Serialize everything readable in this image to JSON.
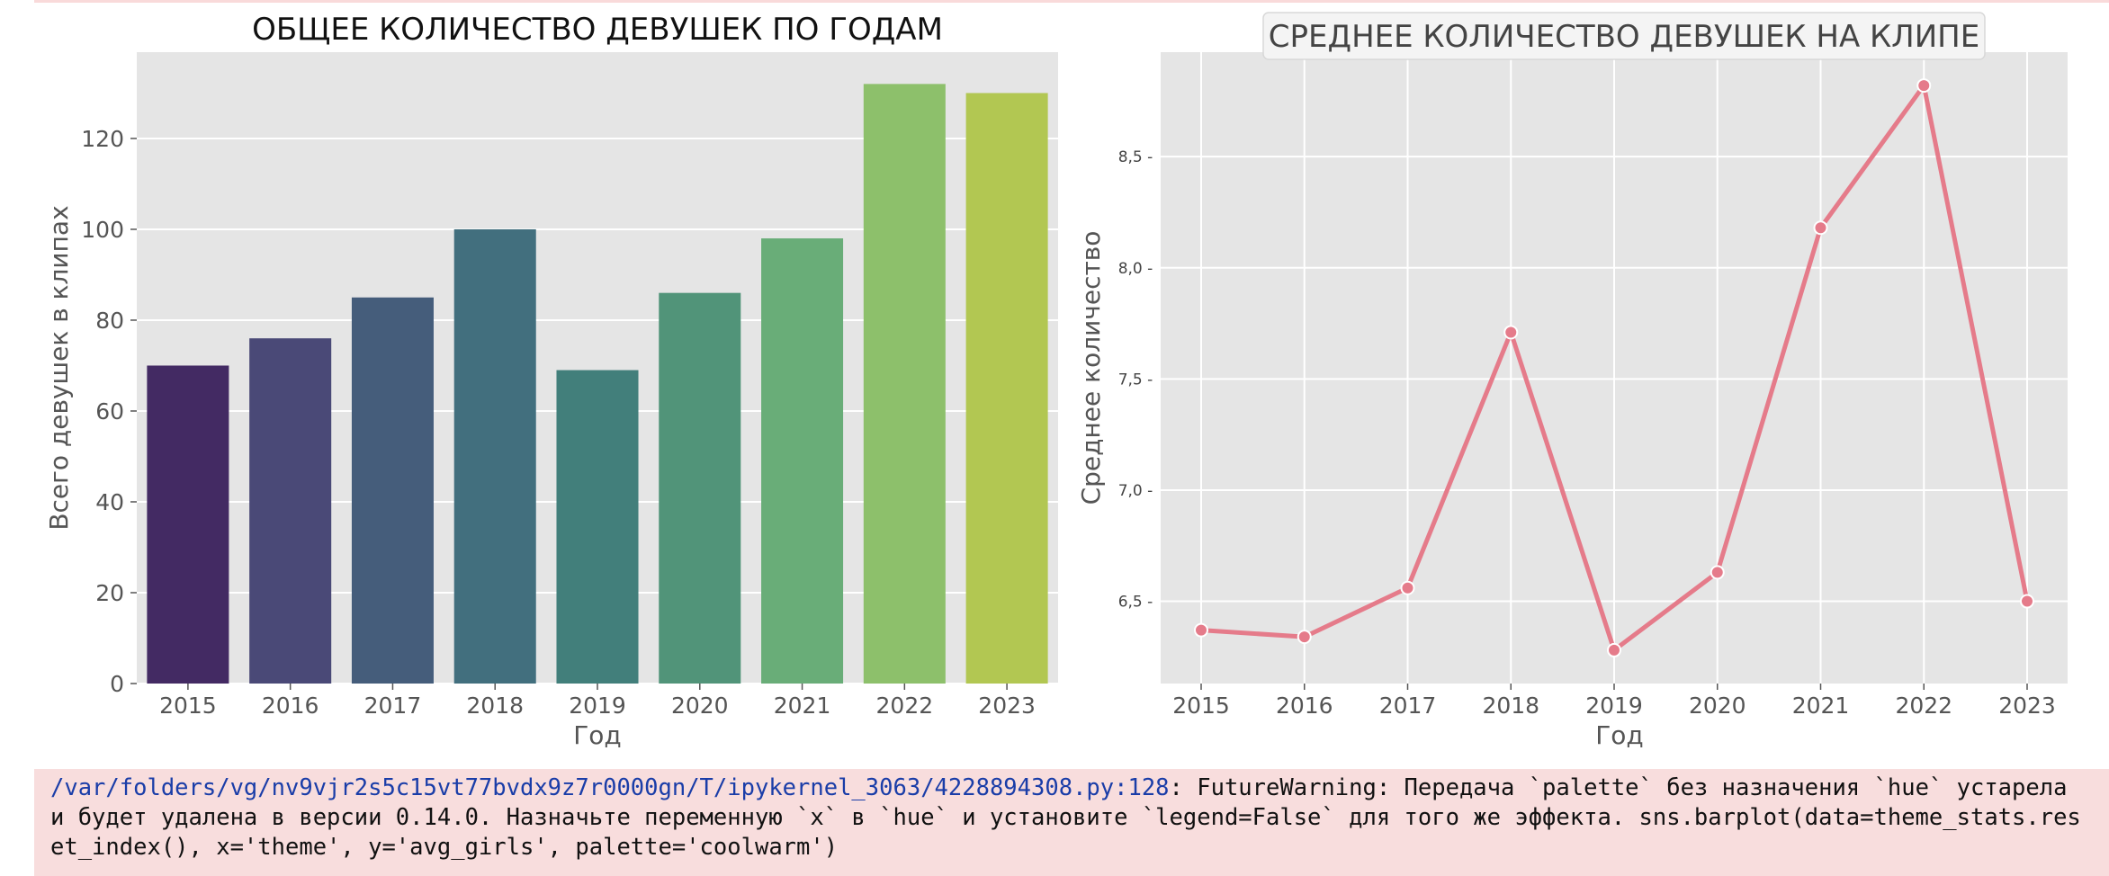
{
  "chart_data": [
    {
      "type": "bar",
      "title": "ОБЩЕЕ КОЛИЧЕСТВО ДЕВУШЕК ПО ГОДАМ",
      "xlabel": "Год",
      "ylabel": "Всего девушек в клипах",
      "categories": [
        "2015",
        "2016",
        "2017",
        "2018",
        "2019",
        "2020",
        "2021",
        "2022",
        "2023"
      ],
      "values": [
        70,
        76,
        85,
        100,
        69,
        86,
        98,
        132,
        130
      ],
      "ylim": [
        0,
        139
      ],
      "yticks": [
        0,
        20,
        40,
        60,
        80,
        100,
        120
      ],
      "colors": [
        "#432a63",
        "#4a4977",
        "#455d7b",
        "#426f7e",
        "#427f7b",
        "#519479",
        "#69ad78",
        "#8dc06b",
        "#b2c752"
      ],
      "grid": true
    },
    {
      "type": "line",
      "title": "СРЕДНЕЕ КОЛИЧЕСТВО ДЕВУШЕК НА КЛИПЕ",
      "xlabel": "Год",
      "ylabel": "Среднее количество",
      "x": [
        "2015",
        "2016",
        "2017",
        "2018",
        "2019",
        "2020",
        "2021",
        "2022",
        "2023"
      ],
      "values": [
        6.37,
        6.34,
        6.56,
        7.71,
        6.28,
        6.63,
        8.18,
        8.82,
        6.5
      ],
      "ylim": [
        6.13,
        8.97
      ],
      "yticks": [
        "6,5",
        "7,0",
        "7,5",
        "8,0",
        "8,5"
      ],
      "ytick_values": [
        6.5,
        7.0,
        7.5,
        8.0,
        8.5
      ],
      "color": "#e57b8a",
      "grid": true
    }
  ],
  "warning": {
    "path": "/var/folders/vg/nv9vjr2s5c15vt77bvdx9z7r0000gn/T/ipykernel_3063/4228894308.py:128",
    "message": ": FutureWarning: Передача `palette` без назначения `hue` устарела и будет удалена в версии 0.14.0. Назначьте переменную `x` в `hue` и установите `legend=False` для того же эффекта. sns.barplot(data=theme_stats.reset_index(), x='theme', y='avg_girls', palette='coolwarm')"
  }
}
